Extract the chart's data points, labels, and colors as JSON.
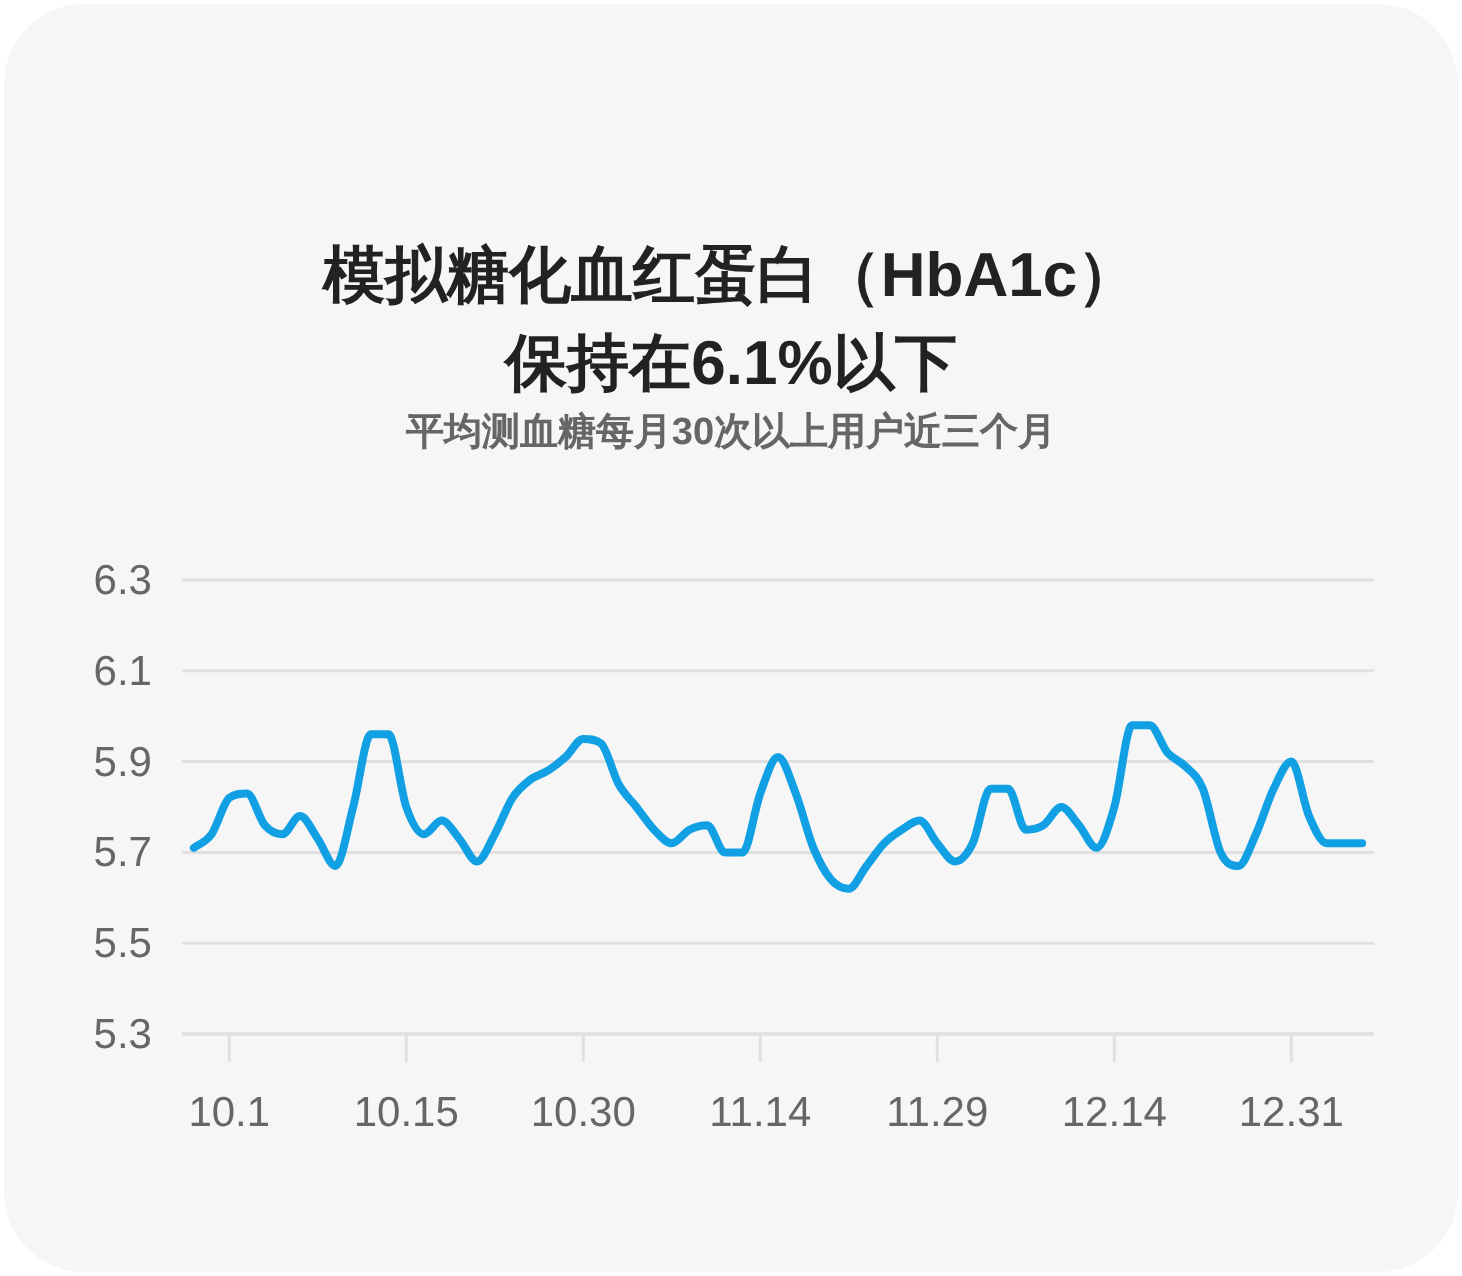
{
  "chart_data": {
    "type": "line",
    "title": "模拟糖化血红蛋白（HbA1c）保持在6.1%以下",
    "subtitle": "平均测血糖每月30次以上用户近三个月",
    "categories": [
      null,
      null,
      "10.1",
      null,
      null,
      null,
      null,
      null,
      null,
      null,
      null,
      null,
      "10.15",
      null,
      null,
      null,
      null,
      null,
      null,
      null,
      null,
      null,
      "10.30",
      null,
      null,
      null,
      null,
      null,
      null,
      null,
      null,
      null,
      "11.14",
      null,
      null,
      null,
      null,
      null,
      null,
      null,
      null,
      null,
      "11.29",
      null,
      null,
      null,
      null,
      null,
      null,
      null,
      null,
      null,
      "12.14",
      null,
      null,
      null,
      null,
      null,
      null,
      null,
      null,
      null,
      "12.31",
      null,
      null,
      null,
      null
    ],
    "series": [
      {
        "color": "#12a0e4",
        "values": [
          5.71,
          5.74,
          5.82,
          5.83,
          5.76,
          5.74,
          5.78,
          5.73,
          5.67,
          5.8,
          5.96,
          5.96,
          5.8,
          5.74,
          5.77,
          5.73,
          5.68,
          5.74,
          5.82,
          5.86,
          5.88,
          5.91,
          5.95,
          5.94,
          5.85,
          5.8,
          5.75,
          5.72,
          5.75,
          5.76,
          5.7,
          5.7,
          5.83,
          5.91,
          5.83,
          5.71,
          5.64,
          5.62,
          5.67,
          5.72,
          5.75,
          5.77,
          5.72,
          5.68,
          5.72,
          5.84,
          5.84,
          5.75,
          5.76,
          5.8,
          5.76,
          5.71,
          5.8,
          5.98,
          5.98,
          5.92,
          5.89,
          5.84,
          5.7,
          5.67,
          5.74,
          5.84,
          5.9,
          5.78,
          5.72,
          5.72,
          5.72
        ]
      }
    ],
    "ylim": [
      5.3,
      6.3
    ],
    "yticks": [
      5.3,
      5.5,
      5.7,
      5.9,
      6.1,
      6.3
    ],
    "grid": "y",
    "marker": "none",
    "line_style": "solid"
  }
}
